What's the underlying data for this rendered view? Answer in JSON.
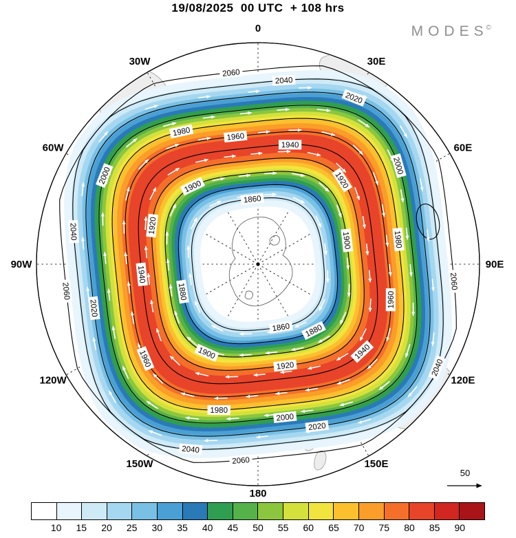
{
  "header": {
    "title": "19/08/2025  00 UTC  + 108 hrs",
    "logo": "MODES",
    "logo_mark": "©"
  },
  "map": {
    "longitude_labels": [
      {
        "text": "0",
        "angle": 0
      },
      {
        "text": "30E",
        "angle": 30
      },
      {
        "text": "60E",
        "angle": 60
      },
      {
        "text": "90E",
        "angle": 90
      },
      {
        "text": "120E",
        "angle": 120
      },
      {
        "text": "150E",
        "angle": 150
      },
      {
        "text": "180",
        "angle": 180
      },
      {
        "text": "150W",
        "angle": 210
      },
      {
        "text": "120W",
        "angle": 240
      },
      {
        "text": "90W",
        "angle": 270
      },
      {
        "text": "60W",
        "angle": 300
      },
      {
        "text": "30W",
        "angle": 330
      }
    ]
  },
  "chart_data": {
    "type": "heatmap",
    "title": "19/08/2025 00 UTC + 108 hrs",
    "source_label": "MODES©",
    "projection": "south polar stereographic",
    "longitude_ticks": [
      "0",
      "30E",
      "60E",
      "90E",
      "120E",
      "150E",
      "180",
      "150W",
      "120W",
      "90W",
      "60W",
      "30W"
    ],
    "shading": {
      "variable": "wind speed",
      "boundaries": [
        10,
        15,
        20,
        25,
        30,
        35,
        40,
        45,
        50,
        55,
        60,
        65,
        70,
        75,
        80,
        85,
        90
      ],
      "colors": [
        "#ffffff",
        "#e8f5fc",
        "#cfeaf7",
        "#a6d7f0",
        "#79c0e5",
        "#4aa0d5",
        "#2a7ab8",
        "#2f9e50",
        "#55b24a",
        "#8cc63f",
        "#d4e13c",
        "#f2e43e",
        "#fcc02e",
        "#fb9d29",
        "#f4702a",
        "#e8442a",
        "#d22721",
        "#a81418"
      ],
      "legend_position": "bottom",
      "pattern": "annular jet ring around a calm polar center, peak values ~80-85"
    },
    "contours": {
      "variable": "geopotential height",
      "levels": [
        1860,
        1880,
        1900,
        1920,
        1940,
        1960,
        1980,
        2000,
        2020,
        2040,
        2060
      ],
      "interval": 20,
      "extra_closed_high": 2060
    },
    "vectors": {
      "style": "white streamline arrows",
      "rotation_sense": "clockwise (westerly)",
      "reference_value": 50
    }
  }
}
